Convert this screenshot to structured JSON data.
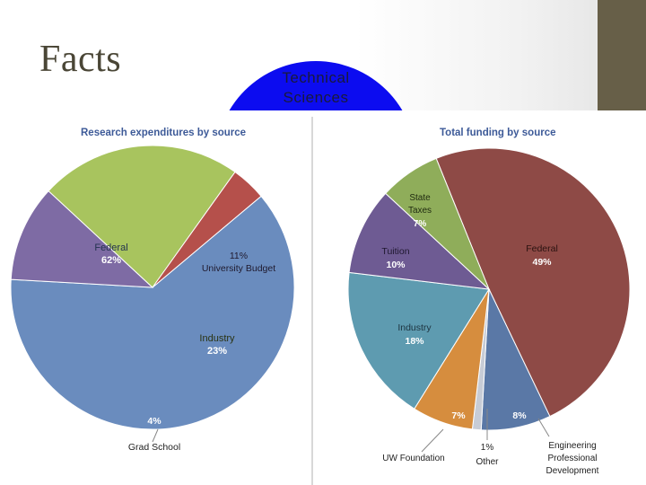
{
  "slide": {
    "title": "Facts",
    "badge_line1": "Technical",
    "badge_line2": "Sciences"
  },
  "colors": {
    "title": "#4a4636",
    "side_bar": "#675f48",
    "badge": "#0c0cf0",
    "chart_title": "#3d5a98"
  },
  "chart_data": [
    {
      "type": "pie",
      "title": "Research expenditures by source",
      "slices": [
        {
          "label": "Federal",
          "value": 62,
          "pct": "62%",
          "color": "#6a8cbe"
        },
        {
          "label": "University Budget",
          "value": 11,
          "pct": "11%",
          "color": "#7e6ba4"
        },
        {
          "label": "Industry",
          "value": 23,
          "pct": "23%",
          "color": "#a8c45e"
        },
        {
          "label": "Grad School",
          "value": 4,
          "pct": "4%",
          "color": "#b5504b"
        }
      ]
    },
    {
      "type": "pie",
      "title": "Total funding by source",
      "slices": [
        {
          "label": "Federal",
          "value": 49,
          "pct": "49%",
          "color": "#8e4a46"
        },
        {
          "label": "Engineering Professional Development",
          "value": 8,
          "pct": "8%",
          "color": "#5a78a6"
        },
        {
          "label": "Other",
          "value": 1,
          "pct": "1%",
          "color": "#c7ccd6"
        },
        {
          "label": "UW Foundation",
          "value": 7,
          "pct": "7%",
          "color": "#d68d3e"
        },
        {
          "label": "Industry",
          "value": 18,
          "pct": "18%",
          "color": "#5e9bb0"
        },
        {
          "label": "Tuition",
          "value": 10,
          "pct": "10%",
          "color": "#6e5b93"
        },
        {
          "label": "State Taxes",
          "value": 7,
          "pct": "7%",
          "color": "#8fad5a"
        }
      ]
    }
  ]
}
